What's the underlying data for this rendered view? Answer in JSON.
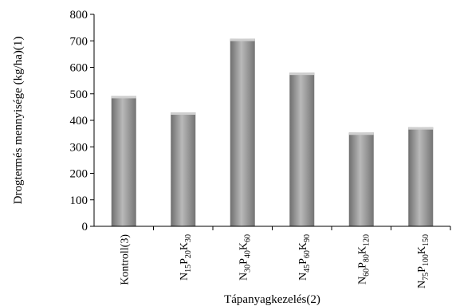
{
  "chart_data": {
    "type": "bar",
    "ylabel": "Drogtermés mennyisége (kg/ha)(1)",
    "xlabel": "Tápanyagkezelés(2)",
    "ylim": [
      0,
      800
    ],
    "yticks": [
      0,
      100,
      200,
      300,
      400,
      500,
      600,
      700,
      800
    ],
    "grid": false,
    "categories": [
      [
        {
          "t": "Kontroll(3)"
        }
      ],
      [
        {
          "t": "N"
        },
        {
          "t": "15",
          "s": 1
        },
        {
          "t": "P"
        },
        {
          "t": "20",
          "s": 1
        },
        {
          "t": "K"
        },
        {
          "t": "30",
          "s": 1
        }
      ],
      [
        {
          "t": "N"
        },
        {
          "t": "30",
          "s": 1
        },
        {
          "t": "P"
        },
        {
          "t": "40",
          "s": 1
        },
        {
          "t": "K"
        },
        {
          "t": "60",
          "s": 1
        }
      ],
      [
        {
          "t": "N"
        },
        {
          "t": "45",
          "s": 1
        },
        {
          "t": "P"
        },
        {
          "t": "60",
          "s": 1
        },
        {
          "t": "K"
        },
        {
          "t": "90",
          "s": 1
        }
      ],
      [
        {
          "t": "N"
        },
        {
          "t": "60",
          "s": 1
        },
        {
          "t": "P"
        },
        {
          "t": "80",
          "s": 1
        },
        {
          "t": "K"
        },
        {
          "t": "120",
          "s": 1
        }
      ],
      [
        {
          "t": "N"
        },
        {
          "t": "75",
          "s": 1
        },
        {
          "t": "P"
        },
        {
          "t": "100",
          "s": 1
        },
        {
          "t": "K"
        },
        {
          "t": "150",
          "s": 1
        }
      ]
    ],
    "values": [
      492,
      430,
      708,
      580,
      354,
      374
    ],
    "bar_color": "#8c8c8c"
  }
}
